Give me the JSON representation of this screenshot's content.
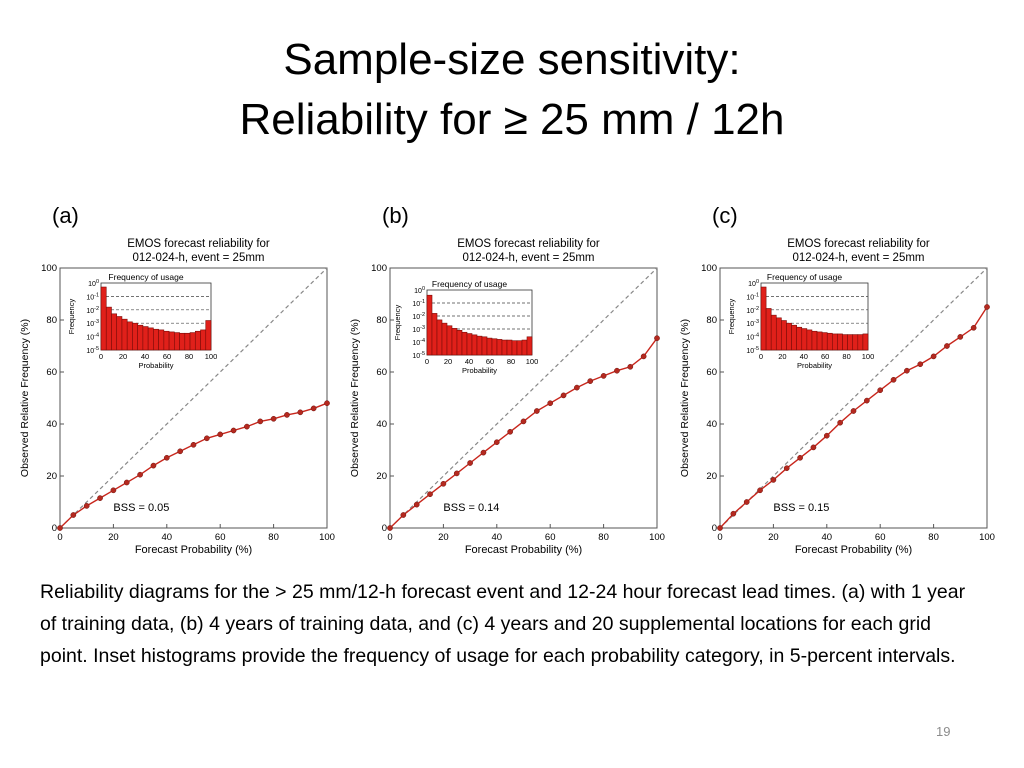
{
  "slide": {
    "title_line1": "Sample-size sensitivity:",
    "title_line2": "Reliability for ≥ 25 mm / 12h",
    "caption": "Reliability diagrams for the > 25 mm/12-h forecast event and 12-24 hour forecast lead times.  (a) with 1 year of training data, (b) 4 years of training data, and (c) 4 years and 20 supplemental locations for each grid point. Inset histograms provide the frequency of usage for each probability category, in 5-percent intervals.",
    "slide_number": "19"
  },
  "chart_data": [
    {
      "type": "line",
      "panel_label": "(a)",
      "title_line1": "EMOS forecast reliability for",
      "title_line2": "012-024-h, event = 25mm",
      "xlabel": "Forecast Probability (%)",
      "ylabel": "Observed Relative Frequency (%)",
      "xlim": [
        0,
        100
      ],
      "ylim": [
        0,
        100
      ],
      "xticks": [
        "0",
        "20",
        "40",
        "60",
        "80",
        "100"
      ],
      "yticks": [
        "0",
        "20",
        "40",
        "60",
        "80",
        "100"
      ],
      "diagonal": true,
      "bss_label": "BSS = 0.05",
      "x": [
        0,
        5,
        10,
        15,
        20,
        25,
        30,
        35,
        40,
        45,
        50,
        55,
        60,
        65,
        70,
        75,
        80,
        85,
        90,
        95,
        100
      ],
      "y": [
        0,
        5,
        8.5,
        11.5,
        14.5,
        17.5,
        20.5,
        24,
        27,
        29.5,
        32,
        34.5,
        36,
        37.5,
        39,
        41,
        42,
        43.5,
        44.5,
        46,
        48
      ],
      "inset": {
        "title": "Frequency of usage",
        "xlabel": "Probability",
        "ylabel": "Frequency",
        "xticks": [
          "0",
          "20",
          "40",
          "60",
          "80",
          "100"
        ],
        "yticks": [
          "10^0",
          "10^-1",
          "10^-2",
          "10^-3",
          "10^-4",
          "10^-5"
        ],
        "log_scale": true,
        "bins_log10": [
          -0.3,
          -1.8,
          -2.3,
          -2.5,
          -2.7,
          -2.9,
          -3.0,
          -3.15,
          -3.25,
          -3.35,
          -3.45,
          -3.5,
          -3.6,
          -3.65,
          -3.7,
          -3.75,
          -3.75,
          -3.7,
          -3.6,
          -3.5,
          -2.8
        ]
      }
    },
    {
      "type": "line",
      "panel_label": "(b)",
      "title_line1": "EMOS forecast reliability for",
      "title_line2": "012-024-h, event = 25mm",
      "xlabel": "Forecast Probability (%)",
      "ylabel": "Observed Relative Frequency (%)",
      "xlim": [
        0,
        100
      ],
      "ylim": [
        0,
        100
      ],
      "xticks": [
        "0",
        "20",
        "40",
        "60",
        "80",
        "100"
      ],
      "yticks": [
        "0",
        "20",
        "40",
        "60",
        "80",
        "100"
      ],
      "diagonal": true,
      "bss_label": "BSS = 0.14",
      "x": [
        0,
        5,
        10,
        15,
        20,
        25,
        30,
        35,
        40,
        45,
        50,
        55,
        60,
        65,
        70,
        75,
        80,
        85,
        90,
        95,
        100
      ],
      "y": [
        0,
        5,
        9,
        13,
        17,
        21,
        25,
        29,
        33,
        37,
        41,
        45,
        48,
        51,
        54,
        56.5,
        58.5,
        60.5,
        62,
        66,
        73
      ]
    },
    {
      "type": "line",
      "panel_label": "(c)",
      "title_line1": "EMOS forecast reliability for",
      "title_line2": "012-024-h, event = 25mm",
      "xlabel": "Forecast Probability (%)",
      "ylabel": "Observed Relative Frequency (%)",
      "xlim": [
        0,
        100
      ],
      "ylim": [
        0,
        100
      ],
      "xticks": [
        "0",
        "20",
        "40",
        "60",
        "80",
        "100"
      ],
      "yticks": [
        "0",
        "20",
        "40",
        "60",
        "80",
        "100"
      ],
      "diagonal": true,
      "bss_label": "BSS = 0.15",
      "x": [
        0,
        5,
        10,
        15,
        20,
        25,
        30,
        35,
        40,
        45,
        50,
        55,
        60,
        65,
        70,
        75,
        80,
        85,
        90,
        95,
        100
      ],
      "y": [
        0,
        5.5,
        10,
        14.5,
        18.5,
        23,
        27,
        31,
        35.5,
        40.5,
        45,
        49,
        53,
        57,
        60.5,
        63,
        66,
        70,
        73.5,
        77,
        85
      ],
      "inset": {
        "title": "Frequency of usage",
        "xlabel": "Probability",
        "ylabel": "Frequency",
        "xticks": [
          "0",
          "20",
          "40",
          "60",
          "80",
          "100"
        ],
        "yticks": [
          "10^0",
          "10^-1",
          "10^-2",
          "10^-3",
          "10^-4",
          "10^-5"
        ],
        "log_scale": true,
        "bins_log10": [
          -0.3,
          -1.9,
          -2.4,
          -2.6,
          -2.8,
          -3.0,
          -3.15,
          -3.3,
          -3.4,
          -3.5,
          -3.6,
          -3.65,
          -3.7,
          -3.75,
          -3.8,
          -3.8,
          -3.85,
          -3.85,
          -3.85,
          -3.85,
          -3.8
        ]
      }
    }
  ],
  "panel_b_inset": {
    "title": "Frequency of usage",
    "xlabel": "Probability",
    "ylabel": "Frequency",
    "xticks": [
      "0",
      "20",
      "40",
      "60",
      "80",
      "100"
    ],
    "yticks": [
      "10^0",
      "10^-1",
      "10^-2",
      "10^-3",
      "10^-4",
      "10^-5"
    ],
    "log_scale": true,
    "bins_log10": [
      -0.4,
      -1.8,
      -2.3,
      -2.55,
      -2.75,
      -2.95,
      -3.1,
      -3.25,
      -3.35,
      -3.45,
      -3.55,
      -3.6,
      -3.7,
      -3.75,
      -3.8,
      -3.85,
      -3.85,
      -3.9,
      -3.9,
      -3.85,
      -3.6
    ]
  },
  "colors": {
    "curve": "#c8261c",
    "marker": "#b5291f",
    "bar_fill": "#e0201a",
    "bar_edge": "#7a0c08",
    "diagonal": "#888888",
    "axis": "#555555"
  }
}
